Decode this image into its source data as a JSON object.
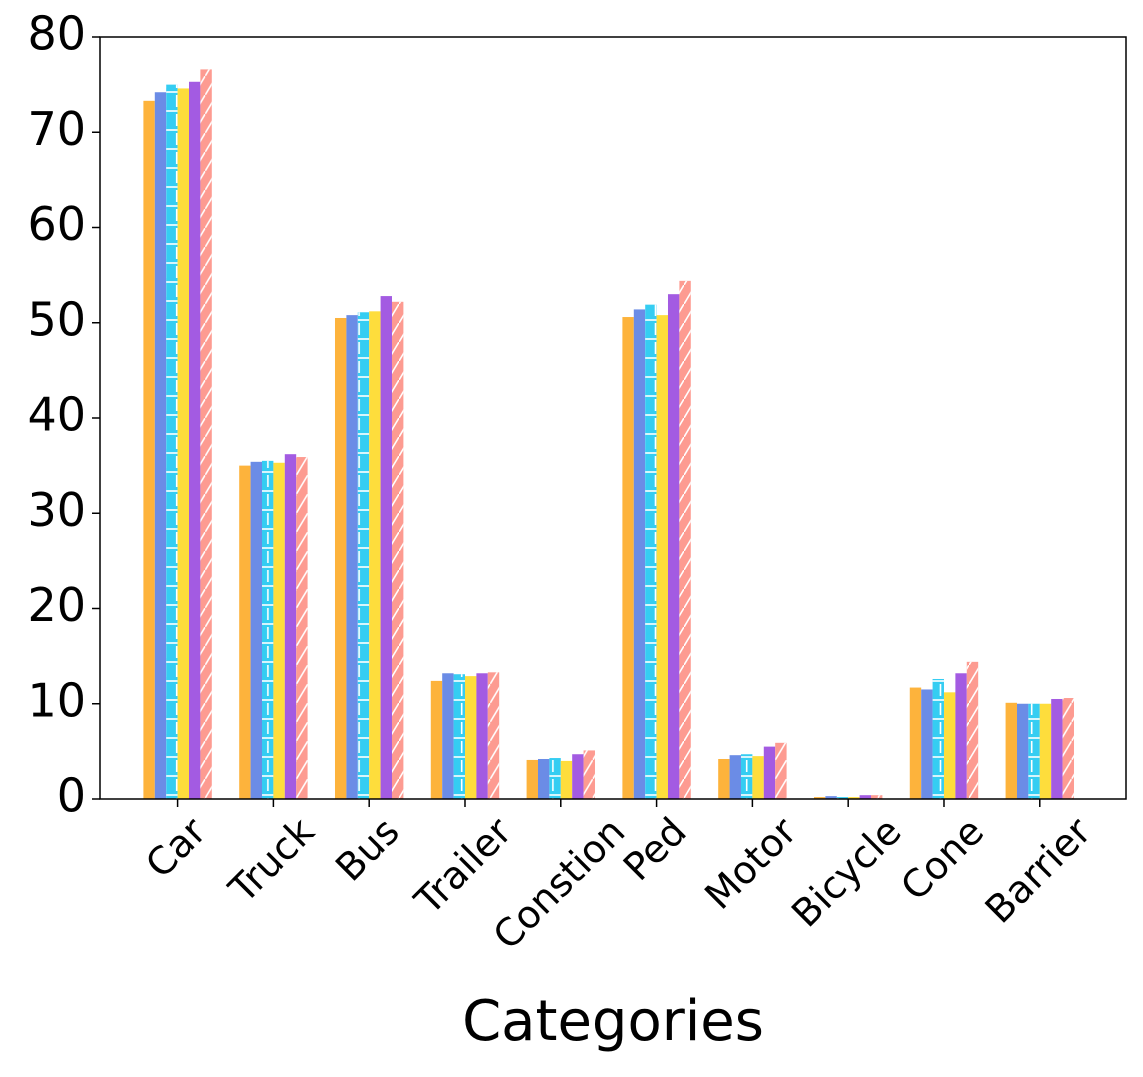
{
  "chart_data": {
    "type": "bar",
    "xlabel": "Categories",
    "categories": [
      "Car",
      "Truck",
      "Bus",
      "Trailer",
      "Constion",
      "Ped",
      "Motor",
      "Bicycle",
      "Cone",
      "Barrier"
    ],
    "series": [
      {
        "color": "#fdb33c",
        "values": [
          73.3,
          35.0,
          50.5,
          12.4,
          4.1,
          50.6,
          4.2,
          0.2,
          11.7,
          10.1
        ]
      },
      {
        "color": "#6b8ce6",
        "values": [
          74.2,
          35.4,
          50.8,
          13.2,
          4.2,
          51.4,
          4.6,
          0.3,
          11.5,
          10.0
        ]
      },
      {
        "color": "#35cdf2",
        "hatch": "+",
        "values": [
          75.0,
          35.5,
          51.1,
          13.1,
          4.3,
          51.9,
          4.7,
          0.2,
          12.6,
          10.0
        ]
      },
      {
        "color": "#fedd3c",
        "values": [
          74.6,
          35.3,
          51.2,
          12.9,
          4.0,
          50.8,
          4.5,
          0.2,
          11.2,
          10.0
        ]
      },
      {
        "color": "#a35be2",
        "values": [
          75.3,
          36.2,
          52.8,
          13.2,
          4.7,
          53.0,
          5.5,
          0.4,
          13.2,
          10.5
        ]
      },
      {
        "color": "#fd9b91",
        "hatch": "/",
        "values": [
          76.6,
          35.9,
          52.2,
          13.3,
          5.1,
          54.4,
          5.9,
          0.4,
          14.4,
          10.6
        ]
      }
    ],
    "ylim": [
      0,
      80
    ],
    "yticks": [
      0,
      10,
      20,
      30,
      40,
      50,
      60,
      70,
      80
    ]
  }
}
